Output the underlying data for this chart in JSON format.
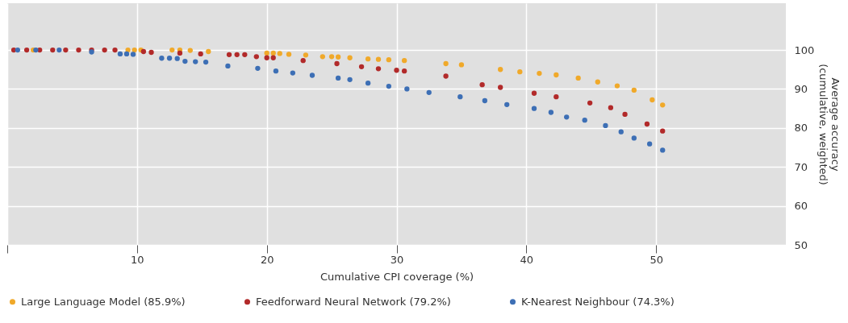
{
  "chart_data": {
    "type": "scatter",
    "xlabel": "Cumulative CPI coverage (%)",
    "ylabel": "Average accuracy\n(cumulative, weighted)",
    "xlim": [
      0,
      60
    ],
    "xticks": [
      {
        "value": 0,
        "label": null
      },
      10,
      20,
      30,
      40,
      50
    ],
    "ylim": [
      50,
      112
    ],
    "yticks": [
      50,
      60,
      70,
      80,
      90,
      100
    ],
    "grid": true,
    "legend": "bottom",
    "marker": "circle",
    "series": [
      {
        "name": "Large Language Model (85.9%)",
        "color": "#f0a92a",
        "x": [
          2.0,
          9.3,
          9.8,
          10.3,
          12.7,
          13.3,
          14.1,
          15.5,
          20.0,
          20.5,
          21.0,
          21.7,
          23.0,
          24.3,
          25.0,
          25.5,
          26.4,
          27.8,
          28.6,
          29.4,
          30.6,
          33.8,
          35.0,
          38.0,
          39.5,
          41.0,
          42.3,
          44.0,
          45.5,
          47.0,
          48.3,
          49.7,
          50.5
        ],
        "values": [
          100,
          100,
          100,
          100,
          100,
          100,
          99.9,
          99.6,
          99.2,
          99.2,
          99.1,
          98.9,
          98.7,
          98.3,
          98.3,
          98.2,
          98.0,
          97.7,
          97.6,
          97.5,
          97.3,
          96.5,
          96.2,
          95.0,
          94.4,
          94.0,
          93.6,
          92.8,
          91.8,
          90.8,
          89.7,
          87.2,
          85.9
        ]
      },
      {
        "name": "Feedforward Neural Network (79.2%)",
        "color": "#b22a2a",
        "x": [
          0.5,
          1.5,
          2.5,
          3.5,
          4.5,
          5.5,
          6.5,
          7.5,
          8.3,
          10.5,
          11.1,
          13.3,
          14.9,
          17.1,
          17.7,
          18.3,
          19.2,
          20.0,
          20.5,
          22.8,
          25.4,
          27.3,
          28.6,
          30.0,
          30.6,
          33.8,
          36.6,
          38.0,
          40.6,
          42.3,
          44.9,
          46.5,
          47.6,
          49.3,
          50.5
        ],
        "values": [
          100,
          100,
          100,
          100,
          100,
          100,
          100,
          100,
          100,
          99.6,
          99.4,
          99.2,
          99.0,
          98.8,
          98.8,
          98.8,
          98.3,
          98.0,
          98.0,
          97.3,
          96.5,
          95.7,
          95.2,
          94.8,
          94.6,
          93.3,
          91.1,
          90.4,
          88.9,
          88.0,
          86.4,
          85.2,
          83.5,
          81.0,
          79.2
        ]
      },
      {
        "name": "K-Nearest Neighbour (74.3%)",
        "color": "#3d6fb5",
        "x": [
          0.8,
          2.2,
          4.0,
          6.5,
          8.7,
          9.2,
          9.7,
          11.9,
          12.5,
          13.1,
          13.7,
          14.5,
          15.3,
          17.0,
          19.3,
          20.7,
          22.0,
          23.5,
          25.5,
          26.4,
          27.8,
          29.4,
          30.8,
          32.5,
          34.9,
          36.8,
          38.5,
          40.6,
          41.9,
          43.1,
          44.5,
          46.1,
          47.3,
          48.3,
          49.5,
          50.5
        ],
        "values": [
          100,
          100,
          100,
          99.5,
          99.0,
          99.0,
          98.9,
          97.9,
          97.9,
          97.8,
          97.1,
          97.0,
          96.9,
          95.9,
          95.3,
          94.6,
          94.1,
          93.5,
          92.8,
          92.4,
          91.5,
          90.7,
          90.0,
          89.1,
          88.0,
          87.0,
          86.0,
          85.0,
          84.0,
          82.8,
          82.0,
          80.6,
          79.0,
          77.4,
          75.9,
          74.3
        ]
      }
    ]
  }
}
